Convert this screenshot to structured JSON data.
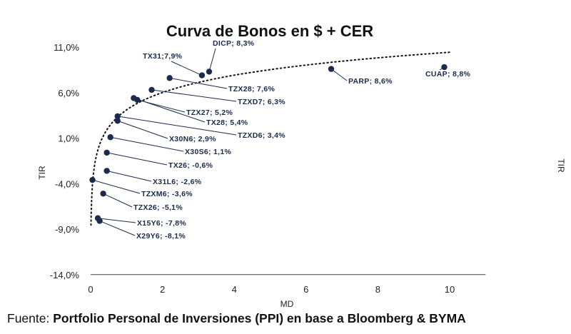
{
  "chart_data": {
    "type": "scatter",
    "title": "Curva de Bonos en $ + CER",
    "xlabel": "MD",
    "ylabel": "TIR",
    "ylabel_right": "TIR",
    "xlim": [
      0,
      11
    ],
    "ylim": [
      -14,
      11
    ],
    "x_ticks": [
      "0",
      "2",
      "4",
      "6",
      "8",
      "10"
    ],
    "y_ticks": [
      "11,0%",
      "6,0%",
      "1,0%",
      "-4,0%",
      "-9,0%",
      "-14,0%"
    ],
    "series_color": "#1b2a4e",
    "points": [
      {
        "label": "DICP; 8,3%",
        "x": 3.3,
        "y": 8.3
      },
      {
        "label": "TX31;7,9%",
        "x": 3.1,
        "y": 7.9
      },
      {
        "label": "TZX28; 7,6%",
        "x": 2.2,
        "y": 7.6
      },
      {
        "label": "TZXD7; 6,3%",
        "x": 1.7,
        "y": 6.3
      },
      {
        "label": "TZX27; 5,2%",
        "x": 1.3,
        "y": 5.2
      },
      {
        "label": "TX28; 5,4%",
        "x": 1.2,
        "y": 5.4
      },
      {
        "label": "TZXD6; 3,4%",
        "x": 0.75,
        "y": 3.4
      },
      {
        "label": "X30N6; 2,9%",
        "x": 0.75,
        "y": 2.9
      },
      {
        "label": "X30S6; 1,1%",
        "x": 0.55,
        "y": 1.1
      },
      {
        "label": "TX26; -0,6%",
        "x": 0.45,
        "y": -0.6
      },
      {
        "label": "X31L6; -2,6%",
        "x": 0.45,
        "y": -2.6
      },
      {
        "label": "TZXM6; -3,6%",
        "x": 0.05,
        "y": -3.6
      },
      {
        "label": "TZX26; -5,1%",
        "x": 0.35,
        "y": -5.1
      },
      {
        "label": "X15Y6; -7,8%",
        "x": 0.2,
        "y": -7.8
      },
      {
        "label": "X29Y6; -8,1%",
        "x": 0.25,
        "y": -8.1
      },
      {
        "label": "PARP; 8,6%",
        "x": 6.7,
        "y": 8.6
      },
      {
        "label": "CUAP; 8,8%",
        "x": 9.85,
        "y": 8.8
      }
    ],
    "trendline": {
      "type": "logarithmic",
      "style": "dotted"
    }
  },
  "footer": {
    "prefix": "Fuente: ",
    "source": "Portfolio Personal de Inversiones (PPI) en base a Bloomberg & BYMA"
  }
}
